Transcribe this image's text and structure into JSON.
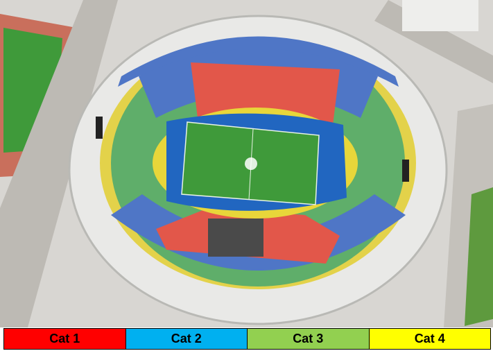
{
  "legend": [
    {
      "label": "Cat 1",
      "color": "#ff0000"
    },
    {
      "label": "Cat 2",
      "color": "#00b0f0"
    },
    {
      "label": "Cat 3",
      "color": "#92d050"
    },
    {
      "label": "Cat 4",
      "color": "#ffff00"
    }
  ]
}
